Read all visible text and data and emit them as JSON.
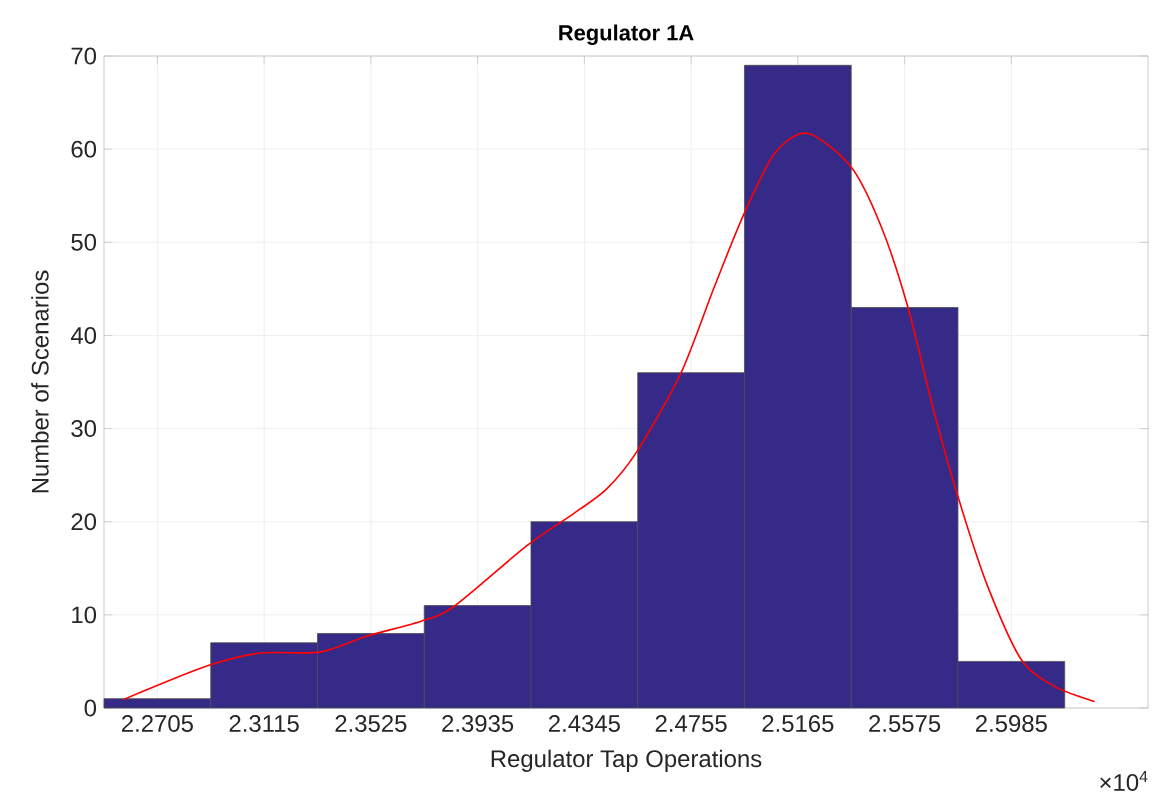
{
  "chart_data": {
    "type": "histogram",
    "title": "Regulator 1A",
    "xlabel": "Regulator Tap Operations",
    "ylabel": "Number of Scenarios",
    "bins": [
      2.25,
      2.291,
      2.332,
      2.373,
      2.414,
      2.455,
      2.496,
      2.537,
      2.578,
      2.619
    ],
    "values": [
      1,
      7,
      8,
      11,
      20,
      36,
      69,
      43,
      5
    ],
    "color": "#352a87",
    "series": [
      {
        "type": "line",
        "color": "#ff0000",
        "x": [
          2.2574,
          2.2895,
          2.31,
          2.333,
          2.3508,
          2.3715,
          2.3844,
          2.4123,
          2.4305,
          2.443,
          2.4546,
          2.4715,
          2.4844,
          2.4959,
          2.5075,
          2.5202,
          2.5369,
          2.5485,
          2.5587,
          2.569,
          2.5792,
          2.5895,
          2.6023,
          2.6152,
          2.6305
        ],
        "values": [
          0.9,
          4.5,
          5.9,
          6.0,
          7.7,
          9.3,
          10.9,
          17.4,
          20.9,
          23.5,
          27.5,
          35.9,
          45.2,
          53.1,
          59.5,
          61.7,
          58.1,
          51.7,
          43.1,
          31.6,
          21.6,
          13.0,
          5.2,
          2.3,
          0.7
        ]
      }
    ],
    "xlim": [
      2.25,
      2.651
    ],
    "ylim": [
      0,
      70
    ],
    "xticks": [
      2.2705,
      2.3115,
      2.3525,
      2.3935,
      2.4345,
      2.4755,
      2.5165,
      2.5575,
      2.5985
    ],
    "yticks": [
      0,
      10,
      20,
      30,
      40,
      50,
      60,
      70
    ],
    "grid": true,
    "annotations": [
      "×10$^{4}$"
    ]
  }
}
